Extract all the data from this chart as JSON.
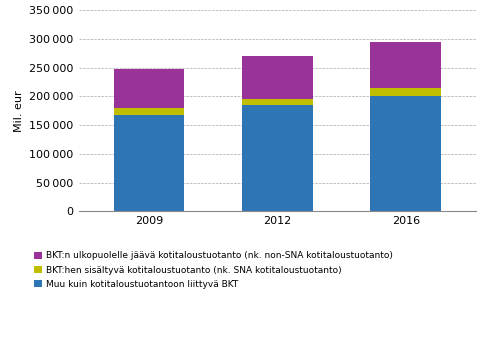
{
  "years": [
    "2009",
    "2012",
    "2016"
  ],
  "blue": [
    167000,
    185000,
    201000
  ],
  "green": [
    13000,
    10000,
    13000
  ],
  "magenta": [
    67000,
    75000,
    80000
  ],
  "colors": {
    "blue": "#2E75B6",
    "green": "#BFBF00",
    "magenta": "#993399"
  },
  "ylabel": "Mil. eur",
  "ylim": [
    0,
    350000
  ],
  "yticks": [
    0,
    50000,
    100000,
    150000,
    200000,
    250000,
    300000,
    350000
  ],
  "legend_labels": [
    "BKT:n ulkopuolelle jäävä kotitaloustuotanto (nk. non-SNA kotitaloustuotanto)",
    "BKT:hen sisältyvä kotitaloustuotanto (nk. SNA kotitaloustuotanto)",
    "Muu kuin kotitaloustuotantoon liittyvä BKT"
  ],
  "background_color": "#FFFFFF",
  "grid_color": "#AAAAAA",
  "bar_width": 0.55
}
